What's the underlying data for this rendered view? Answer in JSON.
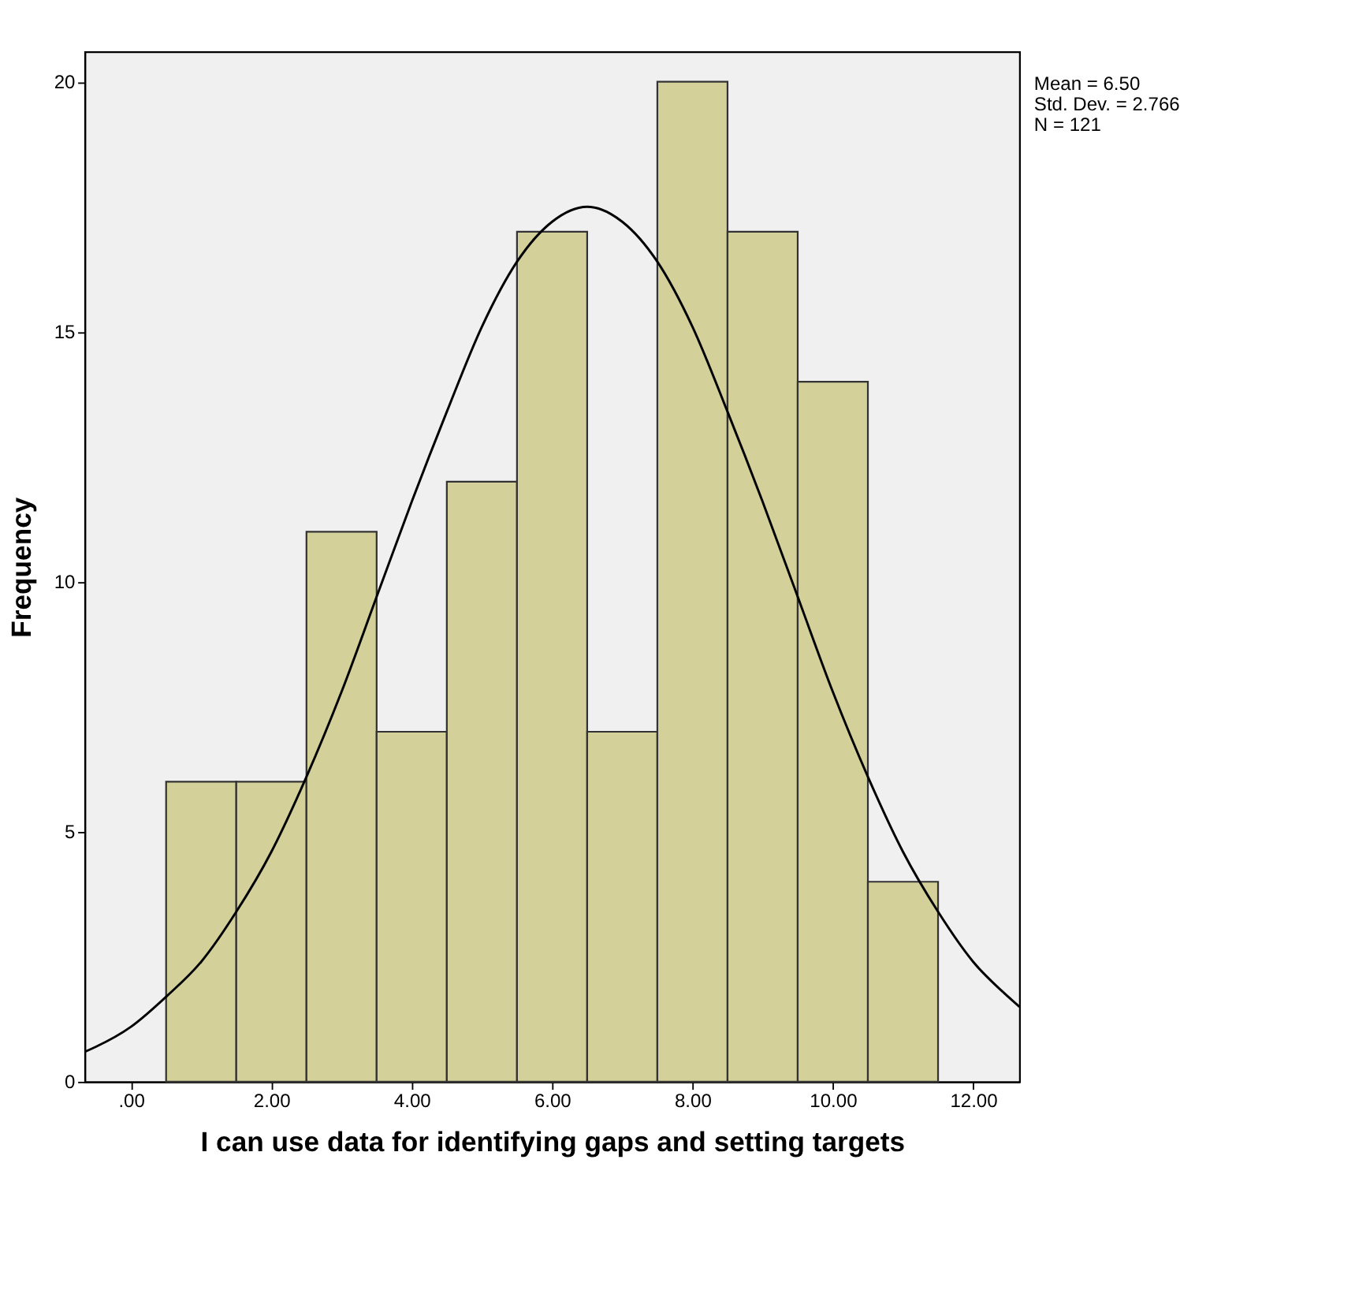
{
  "chart_data": {
    "type": "histogram",
    "xlabel": "I can use data for identifying gaps and setting targets",
    "ylabel": "Frequency",
    "bins": [
      0.5,
      1.5,
      2.5,
      3.5,
      4.5,
      5.5,
      6.5,
      7.5,
      8.5,
      9.5,
      10.5,
      11.5
    ],
    "values": [
      6,
      6,
      11,
      7,
      12,
      17,
      7,
      20,
      17,
      14,
      4
    ],
    "color": "#d4d09a",
    "series": [
      {
        "type": "line",
        "color": "#000000",
        "x": [
          -0.66,
          -0.5,
          0,
          0.5,
          1,
          1.5,
          2,
          2.5,
          3,
          3.5,
          4,
          4.5,
          5,
          5.5,
          6,
          6.5,
          7,
          7.5,
          8,
          8.5,
          9,
          9.5,
          10,
          10.5,
          11,
          11.5,
          12,
          12.5,
          12.66
        ],
        "values": [
          0.6,
          0.7,
          1.1,
          1.7,
          2.4,
          3.4,
          4.6,
          6.1,
          7.8,
          9.7,
          11.6,
          13.4,
          15.1,
          16.4,
          17.2,
          17.5,
          17.2,
          16.4,
          15.1,
          13.4,
          11.6,
          9.7,
          7.8,
          6.1,
          4.6,
          3.4,
          2.4,
          1.7,
          1.5
        ]
      }
    ],
    "xlim": [
      -0.66,
      12.66
    ],
    "ylim": [
      0,
      20.6
    ],
    "xticks": [
      {
        "value": 0,
        "label": ".00"
      },
      {
        "value": 2,
        "label": "2.00"
      },
      {
        "value": 4,
        "label": "4.00"
      },
      {
        "value": 6,
        "label": "6.00"
      },
      {
        "value": 8,
        "label": "8.00"
      },
      {
        "value": 10,
        "label": "10.00"
      },
      {
        "value": 12,
        "label": "12.00"
      }
    ],
    "yticks": [
      0,
      5,
      10,
      15,
      20
    ],
    "grid": false,
    "annotations": [
      "Mean = 6.50",
      "Std. Dev. = 2.766",
      "N = 121"
    ]
  }
}
